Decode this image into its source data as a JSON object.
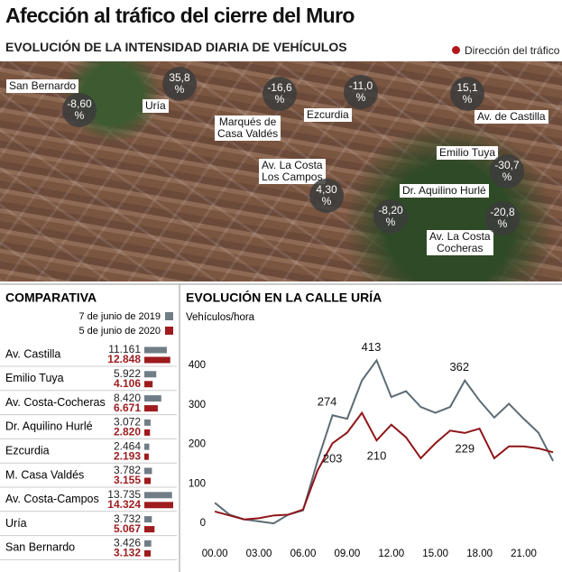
{
  "title": "Afección al tráfico del cierre del Muro",
  "map": {
    "subtitle": "EVOLUCIÓN DE LA INTENSIDAD DIARIA DE VEHÍCULOS",
    "legend": "Dirección del tráfico",
    "labels": [
      "San Bernardo",
      "Uría",
      "Marqués de\nCasa Valdés",
      "Ezcurdia",
      "Av. de Castilla",
      "Emilio Tuya",
      "Av. La Costa\nLos Campos",
      "Dr. Aquilino Hurlé",
      "Av. La Costa\nCocheras"
    ],
    "changes": [
      "-8,60 %",
      "35,8 %",
      "-16,6 %",
      "-11,0 %",
      "15,1 %",
      "-30,7 %",
      "4,30 %",
      "-8,20 %",
      "-20,8 %"
    ]
  },
  "chart_data": [
    {
      "type": "bar",
      "orientation": "horizontal",
      "title": "COMPARATIVA",
      "categories": [
        "Av. Castilla",
        "Emilio Tuya",
        "Av. Costa-Cocheras",
        "Dr. Aquilino Hurlé",
        "Ezcurdia",
        "M. Casa Valdés",
        "Av. Costa-Campos",
        "Uría",
        "San Bernardo"
      ],
      "series": [
        {
          "name": "7 de junio de 2019",
          "color": "#707d86",
          "values": [
            11161,
            5922,
            8420,
            3072,
            2464,
            3782,
            13735,
            3732,
            3426
          ],
          "value_labels": [
            "11.161",
            "5.922",
            "8.420",
            "3.072",
            "2.464",
            "3.782",
            "13.735",
            "3.732",
            "3.426"
          ]
        },
        {
          "name": "5 de junio de 2020",
          "color": "#9e1b1e",
          "values": [
            12848,
            4106,
            6671,
            2820,
            2193,
            3155,
            14324,
            5067,
            3132
          ],
          "value_labels": [
            "12.848",
            "4.106",
            "6.671",
            "2.820",
            "2.193",
            "3.155",
            "14.324",
            "5.067",
            "3.132"
          ]
        }
      ]
    },
    {
      "type": "line",
      "title": "EVOLUCIÓN EN LA CALLE URÍA",
      "y_label": "Vehículos/hora",
      "x": [
        0,
        1,
        2,
        3,
        4,
        5,
        6,
        7,
        8,
        9,
        10,
        11,
        12,
        13,
        14,
        15,
        16,
        17,
        18,
        19,
        20,
        21,
        22,
        23
      ],
      "xlim": [
        -0.5,
        23.3
      ],
      "xticks": [
        {
          "value": 0,
          "label": "00.00"
        },
        {
          "value": 3,
          "label": "03.00"
        },
        {
          "value": 6,
          "label": "06.00"
        },
        {
          "value": 9,
          "label": "09.00"
        },
        {
          "value": 12,
          "label": "12.00"
        },
        {
          "value": 15,
          "label": "15.00"
        },
        {
          "value": 18,
          "label": "18.00"
        },
        {
          "value": 21,
          "label": "21.00"
        }
      ],
      "ylim": [
        -25,
        430
      ],
      "yticks": [
        0,
        100,
        200,
        300,
        400
      ],
      "labeled_x": [
        8,
        11,
        17
      ],
      "series": [
        {
          "color": "#5d6b74",
          "values": [
            52,
            22,
            10,
            5,
            0,
            22,
            33,
            160,
            274,
            265,
            362,
            413,
            320,
            335,
            295,
            280,
            295,
            362,
            311,
            268,
            303,
            265,
            230,
            158
          ]
        },
        {
          "color": "#8e1518",
          "values": [
            30,
            20,
            10,
            13,
            20,
            22,
            35,
            135,
            203,
            230,
            280,
            210,
            250,
            218,
            165,
            203,
            235,
            229,
            240,
            165,
            195,
            195,
            190,
            180
          ]
        }
      ]
    }
  ]
}
